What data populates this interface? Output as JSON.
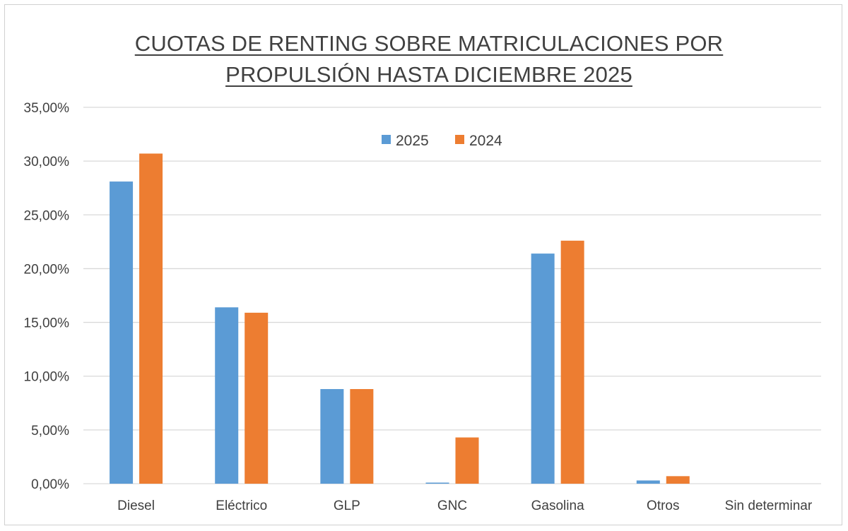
{
  "chart_data": {
    "type": "bar",
    "title_lines": [
      "CUOTAS DE RENTING SOBRE MATRICULACIONES POR",
      "PROPULSIÓN HASTA DICIEMBRE 2025"
    ],
    "categories": [
      "Diesel",
      "Eléctrico",
      "GLP",
      "GNC",
      "Gasolina",
      "Otros",
      "Sin determinar"
    ],
    "series": [
      {
        "name": "2025",
        "color": "#5b9bd5",
        "values": [
          28.1,
          16.4,
          8.8,
          0.1,
          21.4,
          0.3,
          0.0
        ]
      },
      {
        "name": "2024",
        "color": "#ed7d31",
        "values": [
          30.7,
          15.9,
          8.8,
          4.3,
          22.6,
          0.7,
          0.0
        ]
      }
    ],
    "ylim": [
      0,
      35
    ],
    "yticks": [
      0,
      5,
      10,
      15,
      20,
      25,
      30,
      35
    ],
    "ytick_labels": [
      "0,00%",
      "5,00%",
      "10,00%",
      "15,00%",
      "20,00%",
      "25,00%",
      "30,00%",
      "35,00%"
    ],
    "grid": true,
    "legend_position": "top-center",
    "gridline_color": "#d9d9d9",
    "axis_color": "#d9d9d9"
  }
}
